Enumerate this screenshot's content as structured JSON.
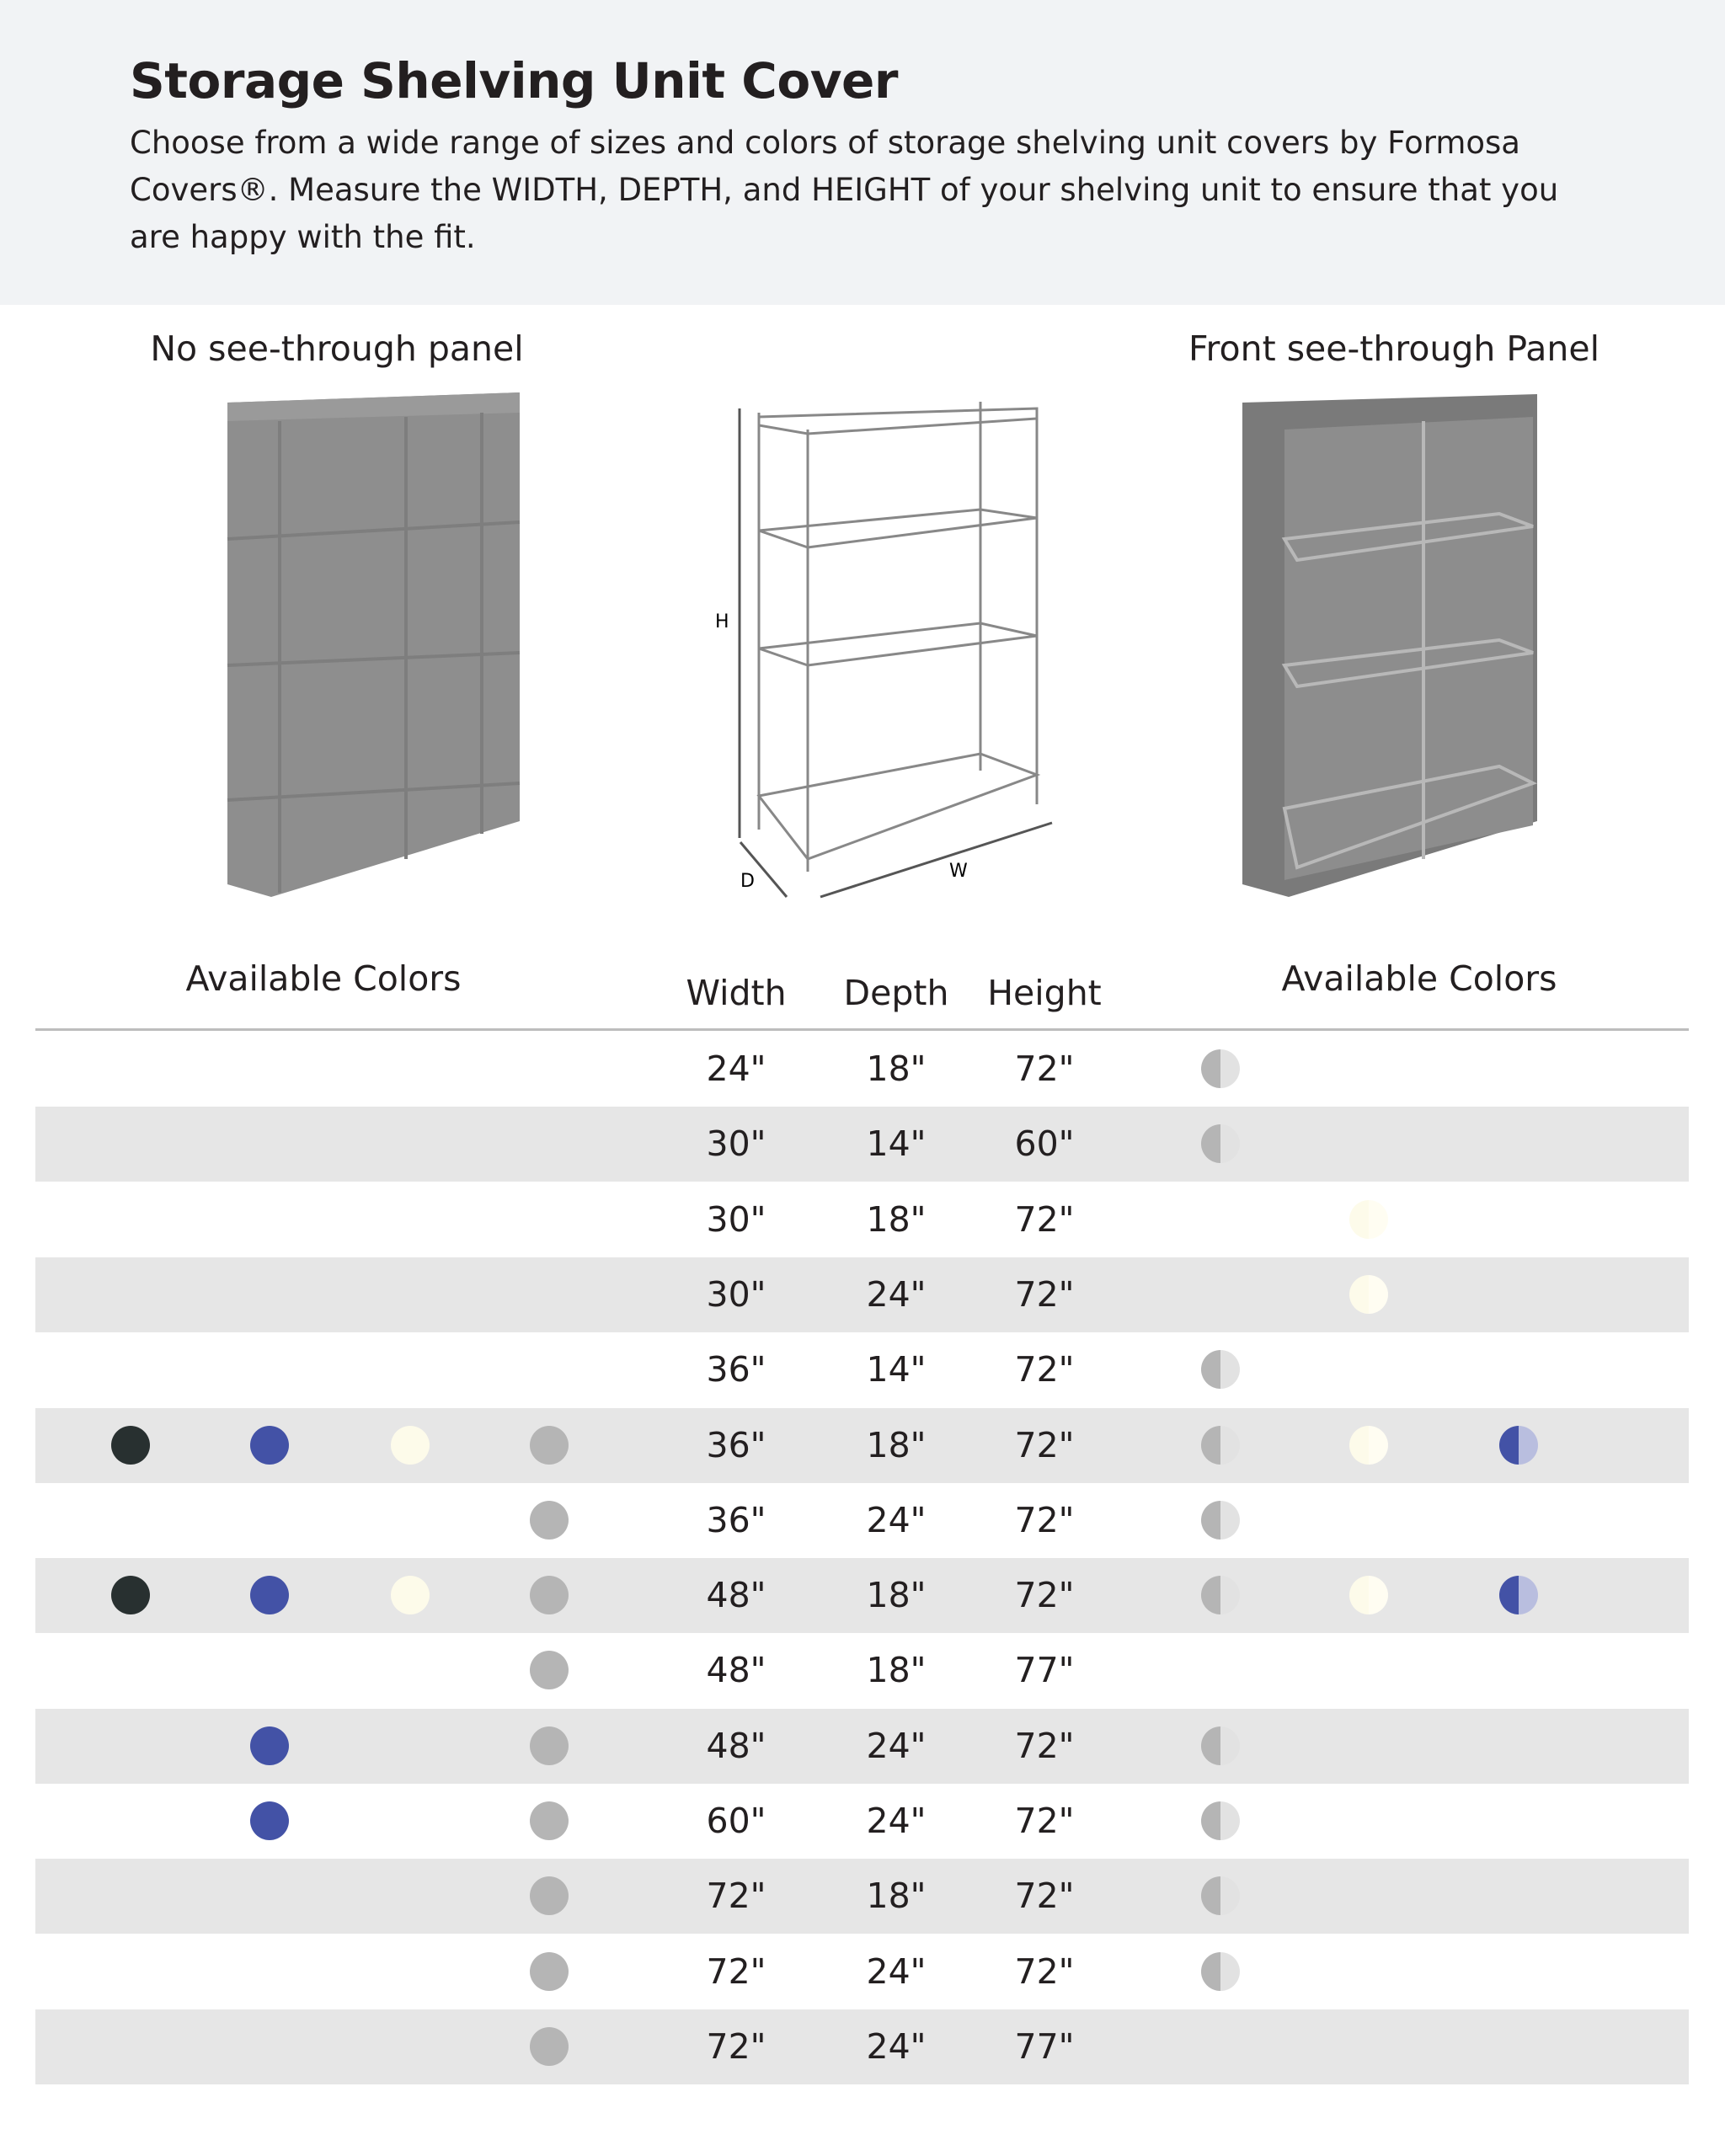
{
  "header": {
    "title": "Storage Shelving Unit Cover",
    "description": "Choose from a wide range of sizes and colors of storage shelving unit covers by Formosa Covers®. Measure the WIDTH, DEPTH, and HEIGHT of your shelving unit to ensure that you are happy with the fit."
  },
  "sections": {
    "left_title": "No see-through panel",
    "right_title": "Front see-through Panel",
    "diagram_labels": {
      "h": "H",
      "d": "D",
      "w": "W"
    }
  },
  "table": {
    "columns": {
      "left_colors": "Available Colors",
      "width": "Width",
      "depth": "Depth",
      "height": "Height",
      "right_colors": "Available Colors"
    },
    "colors": {
      "black": "#283030",
      "blue": "#4352a6",
      "beige": "#fdfbea",
      "gray": "#b5b5b5",
      "silver_half": "#b5b5b5",
      "beige_half": "#fdfbea",
      "blue_half": "#4352a6"
    },
    "left_color_order": [
      "black",
      "blue",
      "beige",
      "gray"
    ],
    "right_color_order": [
      "silver",
      "beige",
      "blue"
    ],
    "rows": [
      {
        "width": "24\"",
        "depth": "18\"",
        "height": "72\"",
        "left": [],
        "right": [
          "silver"
        ]
      },
      {
        "width": "30\"",
        "depth": "14\"",
        "height": "60\"",
        "left": [],
        "right": [
          "silver"
        ]
      },
      {
        "width": "30\"",
        "depth": "18\"",
        "height": "72\"",
        "left": [],
        "right": [
          "beige"
        ]
      },
      {
        "width": "30\"",
        "depth": "24\"",
        "height": "72\"",
        "left": [],
        "right": [
          "beige"
        ]
      },
      {
        "width": "36\"",
        "depth": "14\"",
        "height": "72\"",
        "left": [],
        "right": [
          "silver"
        ]
      },
      {
        "width": "36\"",
        "depth": "18\"",
        "height": "72\"",
        "left": [
          "black",
          "blue",
          "beige",
          "gray"
        ],
        "right": [
          "silver",
          "beige",
          "blue"
        ]
      },
      {
        "width": "36\"",
        "depth": "24\"",
        "height": "72\"",
        "left": [
          "gray"
        ],
        "right": [
          "silver"
        ]
      },
      {
        "width": "48\"",
        "depth": "18\"",
        "height": "72\"",
        "left": [
          "black",
          "blue",
          "beige",
          "gray"
        ],
        "right": [
          "silver",
          "beige",
          "blue"
        ]
      },
      {
        "width": "48\"",
        "depth": "18\"",
        "height": "77\"",
        "left": [
          "gray"
        ],
        "right": []
      },
      {
        "width": "48\"",
        "depth": "24\"",
        "height": "72\"",
        "left": [
          "blue",
          "gray"
        ],
        "right": [
          "silver"
        ]
      },
      {
        "width": "60\"",
        "depth": "24\"",
        "height": "72\"",
        "left": [
          "blue",
          "gray"
        ],
        "right": [
          "silver"
        ]
      },
      {
        "width": "72\"",
        "depth": "18\"",
        "height": "72\"",
        "left": [
          "gray"
        ],
        "right": [
          "silver"
        ]
      },
      {
        "width": "72\"",
        "depth": "24\"",
        "height": "72\"",
        "left": [
          "gray"
        ],
        "right": [
          "silver"
        ]
      },
      {
        "width": "72\"",
        "depth": "24\"",
        "height": "77\"",
        "left": [
          "gray"
        ],
        "right": []
      }
    ]
  }
}
